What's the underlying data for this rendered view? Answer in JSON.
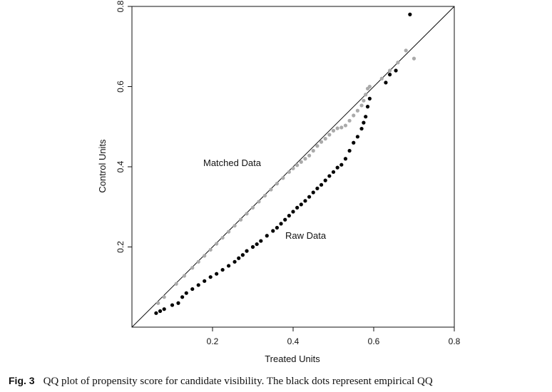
{
  "chart_data": {
    "type": "scatter",
    "xlabel": "Treated Units",
    "ylabel": "Control Units",
    "xlim": [
      0,
      0.8
    ],
    "ylim": [
      0,
      0.8
    ],
    "xticks": [
      "0.2",
      "0.4",
      "0.6",
      "0.8"
    ],
    "yticks": [
      "0.2",
      "0.4",
      "0.6",
      "0.8"
    ],
    "reference_line": "y = x",
    "annotations": [
      {
        "text": "Matched Data",
        "x": 0.28,
        "y": 0.425
      },
      {
        "text": "Raw Data",
        "x": 0.38,
        "y": 0.255
      }
    ],
    "series": [
      {
        "color": "#aaaaaa",
        "points": [
          [
            0.065,
            0.06
          ],
          [
            0.08,
            0.075
          ],
          [
            0.11,
            0.108
          ],
          [
            0.13,
            0.128
          ],
          [
            0.15,
            0.148
          ],
          [
            0.165,
            0.163
          ],
          [
            0.18,
            0.178
          ],
          [
            0.195,
            0.193
          ],
          [
            0.21,
            0.208
          ],
          [
            0.225,
            0.223
          ],
          [
            0.24,
            0.238
          ],
          [
            0.255,
            0.253
          ],
          [
            0.27,
            0.268
          ],
          [
            0.285,
            0.283
          ],
          [
            0.3,
            0.298
          ],
          [
            0.315,
            0.313
          ],
          [
            0.33,
            0.328
          ],
          [
            0.345,
            0.343
          ],
          [
            0.36,
            0.358
          ],
          [
            0.375,
            0.372
          ],
          [
            0.39,
            0.387
          ],
          [
            0.4,
            0.396
          ],
          [
            0.41,
            0.404
          ],
          [
            0.42,
            0.412
          ],
          [
            0.43,
            0.42
          ],
          [
            0.44,
            0.428
          ],
          [
            0.45,
            0.44
          ],
          [
            0.46,
            0.452
          ],
          [
            0.47,
            0.462
          ],
          [
            0.48,
            0.47
          ],
          [
            0.49,
            0.48
          ],
          [
            0.5,
            0.49
          ],
          [
            0.51,
            0.496
          ],
          [
            0.52,
            0.498
          ],
          [
            0.53,
            0.503
          ],
          [
            0.54,
            0.515
          ],
          [
            0.55,
            0.528
          ],
          [
            0.56,
            0.54
          ],
          [
            0.57,
            0.553
          ],
          [
            0.575,
            0.565
          ],
          [
            0.58,
            0.58
          ],
          [
            0.585,
            0.595
          ],
          [
            0.59,
            0.6
          ],
          [
            0.62,
            0.62
          ],
          [
            0.64,
            0.64
          ],
          [
            0.66,
            0.66
          ],
          [
            0.68,
            0.69
          ],
          [
            0.7,
            0.67
          ]
        ]
      },
      {
        "color": "#000000",
        "points": [
          [
            0.06,
            0.035
          ],
          [
            0.07,
            0.04
          ],
          [
            0.08,
            0.045
          ],
          [
            0.1,
            0.055
          ],
          [
            0.115,
            0.06
          ],
          [
            0.125,
            0.075
          ],
          [
            0.135,
            0.085
          ],
          [
            0.15,
            0.095
          ],
          [
            0.165,
            0.105
          ],
          [
            0.18,
            0.115
          ],
          [
            0.195,
            0.125
          ],
          [
            0.21,
            0.133
          ],
          [
            0.225,
            0.143
          ],
          [
            0.24,
            0.153
          ],
          [
            0.255,
            0.163
          ],
          [
            0.265,
            0.172
          ],
          [
            0.275,
            0.18
          ],
          [
            0.285,
            0.19
          ],
          [
            0.3,
            0.2
          ],
          [
            0.31,
            0.207
          ],
          [
            0.32,
            0.215
          ],
          [
            0.335,
            0.228
          ],
          [
            0.35,
            0.24
          ],
          [
            0.36,
            0.248
          ],
          [
            0.37,
            0.258
          ],
          [
            0.38,
            0.268
          ],
          [
            0.39,
            0.278
          ],
          [
            0.4,
            0.288
          ],
          [
            0.41,
            0.298
          ],
          [
            0.42,
            0.306
          ],
          [
            0.43,
            0.315
          ],
          [
            0.44,
            0.325
          ],
          [
            0.45,
            0.336
          ],
          [
            0.46,
            0.346
          ],
          [
            0.47,
            0.355
          ],
          [
            0.48,
            0.366
          ],
          [
            0.49,
            0.377
          ],
          [
            0.5,
            0.387
          ],
          [
            0.51,
            0.398
          ],
          [
            0.52,
            0.405
          ],
          [
            0.53,
            0.42
          ],
          [
            0.54,
            0.44
          ],
          [
            0.55,
            0.46
          ],
          [
            0.56,
            0.475
          ],
          [
            0.57,
            0.495
          ],
          [
            0.575,
            0.51
          ],
          [
            0.58,
            0.525
          ],
          [
            0.585,
            0.55
          ],
          [
            0.59,
            0.57
          ],
          [
            0.63,
            0.61
          ],
          [
            0.64,
            0.63
          ],
          [
            0.655,
            0.64
          ],
          [
            0.69,
            0.78
          ]
        ]
      }
    ]
  },
  "caption": {
    "label": "Fig. 3",
    "text": "QQ plot of propensity score for candidate visibility. The black dots represent empirical QQ"
  }
}
